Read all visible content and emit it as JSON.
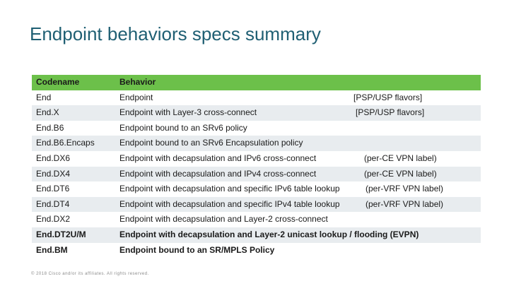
{
  "title": "Endpoint behaviors specs summary",
  "header": {
    "codename": "Codename",
    "behavior": "Behavior"
  },
  "rows": [
    {
      "codename": "End",
      "behavior": "Endpoint",
      "note": "[PSP/USP flavors]"
    },
    {
      "codename": "End.X",
      "behavior": "Endpoint with Layer-3 cross-connect",
      "note": "[PSP/USP flavors]"
    },
    {
      "codename": "End.B6",
      "behavior": "Endpoint bound to an SRv6 policy",
      "note": ""
    },
    {
      "codename": "End.B6.Encaps",
      "behavior": "Endpoint bound to an SRv6 Encapsulation policy",
      "note": ""
    },
    {
      "codename": "End.DX6",
      "behavior": "Endpoint with decapsulation and IPv6 cross-connect",
      "note": "(per-CE VPN label)"
    },
    {
      "codename": "End.DX4",
      "behavior": "Endpoint with decapsulation and IPv4 cross-connect",
      "note": "(per-CE VPN label)"
    },
    {
      "codename": "End.DT6",
      "behavior": "Endpoint with decapsulation and specific IPv6 table lookup",
      "note": "(per-VRF VPN label)"
    },
    {
      "codename": "End.DT4",
      "behavior": "Endpoint with decapsulation and specific IPv4 table lookup",
      "note": "(per-VRF VPN label)"
    },
    {
      "codename": "End.DX2",
      "behavior": "Endpoint with decapsulation and Layer-2 cross-connect",
      "note": ""
    },
    {
      "codename": "End.DT2U/M",
      "behavior": "Endpoint with decapsulation and Layer-2 unicast lookup / flooding (EVPN)",
      "note": ""
    },
    {
      "codename": "End.BM",
      "behavior": "Endpoint bound to an SR/MPLS Policy",
      "note": ""
    }
  ],
  "footer": "© 2018 Cisco and/or its affiliates. All rights reserved.",
  "colors": {
    "title": "#1f5f73",
    "header_bg": "#6cc04a",
    "stripe_bg": "#e8ecef"
  }
}
